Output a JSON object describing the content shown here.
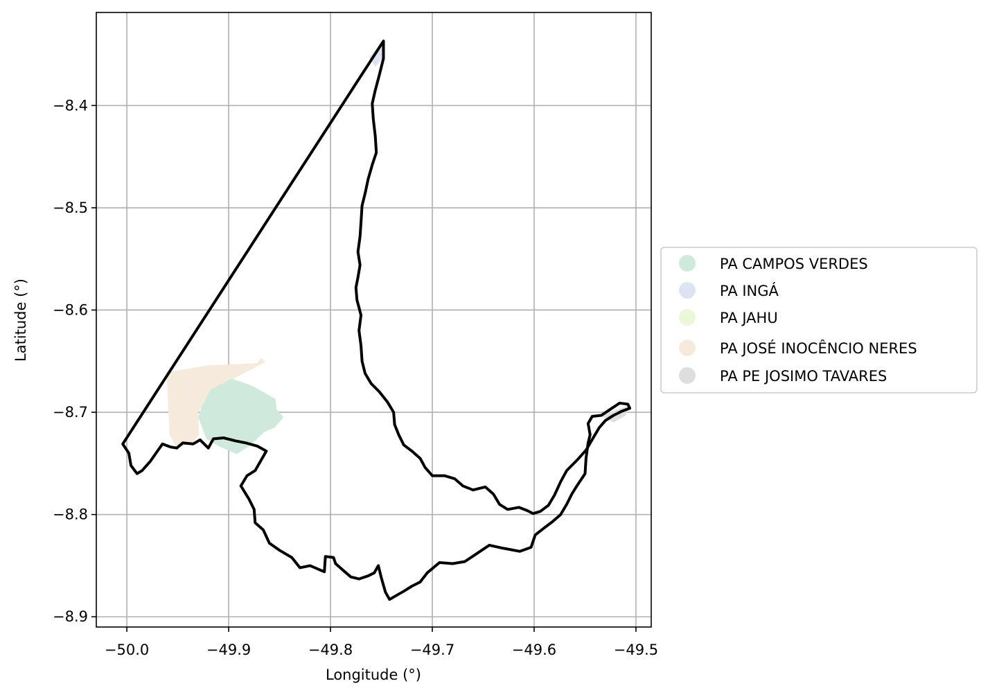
{
  "map": {
    "x_axis_label": "Longitude (°)",
    "y_axis_label": "Latitude (°)",
    "lon_range": [
      -50.03,
      -49.485
    ],
    "lat_range": [
      -8.91,
      -8.309
    ],
    "x_ticks": [
      {
        "value": -50.0,
        "label": "−50.0"
      },
      {
        "value": -49.9,
        "label": "−49.9"
      },
      {
        "value": -49.8,
        "label": "−49.8"
      },
      {
        "value": -49.7,
        "label": "−49.7"
      },
      {
        "value": -49.6,
        "label": "−49.6"
      },
      {
        "value": -49.5,
        "label": "−49.5"
      }
    ],
    "y_ticks": [
      {
        "value": -8.4,
        "label": "−8.4"
      },
      {
        "value": -8.5,
        "label": "−8.5"
      },
      {
        "value": -8.6,
        "label": "−8.6"
      },
      {
        "value": -8.7,
        "label": "−8.7"
      },
      {
        "value": -8.8,
        "label": "−8.8"
      },
      {
        "value": -8.9,
        "label": "−8.9"
      }
    ],
    "grid": true,
    "legend_position": "right, outside plot",
    "legend": [
      {
        "label": "PA CAMPOS VERDES",
        "color": "#cfeadc"
      },
      {
        "label": "PA INGÁ",
        "color": "#dde3f3"
      },
      {
        "label": "PA JAHU",
        "color": "#eaf7d8"
      },
      {
        "label": "PA JOSÉ INOCÊNCIO NERES",
        "color": "#f5eadb"
      },
      {
        "label": "PA PE JOSIMO TAVARES",
        "color": "#dedede"
      }
    ],
    "areas": [
      {
        "name": "PA JOSÉ INOCÊNCIO NERES",
        "color": "#f5eadb",
        "coords": [
          [
            -49.961,
            -8.661
          ],
          [
            -49.92,
            -8.654
          ],
          [
            -49.872,
            -8.652
          ],
          [
            -49.868,
            -8.647
          ],
          [
            -49.864,
            -8.651
          ],
          [
            -49.895,
            -8.667
          ],
          [
            -49.91,
            -8.676
          ],
          [
            -49.93,
            -8.7
          ],
          [
            -49.929,
            -8.722
          ],
          [
            -49.935,
            -8.73
          ],
          [
            -49.951,
            -8.735
          ],
          [
            -49.958,
            -8.722
          ],
          [
            -49.961,
            -8.661
          ]
        ]
      },
      {
        "name": "PA CAMPOS VERDES",
        "color": "#cfeadc",
        "coords": [
          [
            -49.918,
            -8.678
          ],
          [
            -49.897,
            -8.667
          ],
          [
            -49.877,
            -8.674
          ],
          [
            -49.861,
            -8.683
          ],
          [
            -49.854,
            -8.687
          ],
          [
            -49.853,
            -8.697
          ],
          [
            -49.846,
            -8.705
          ],
          [
            -49.855,
            -8.715
          ],
          [
            -49.866,
            -8.72
          ],
          [
            -49.872,
            -8.726
          ],
          [
            -49.88,
            -8.733
          ],
          [
            -49.892,
            -8.741
          ],
          [
            -49.91,
            -8.733
          ],
          [
            -49.922,
            -8.726
          ],
          [
            -49.926,
            -8.715
          ],
          [
            -49.93,
            -8.705
          ],
          [
            -49.926,
            -8.694
          ],
          [
            -49.918,
            -8.678
          ]
        ]
      },
      {
        "name": "PA INGÁ",
        "color": "#dde3f3",
        "coords": [
          [
            -49.749,
            -8.337
          ],
          [
            -49.749,
            -8.354
          ],
          [
            -49.756,
            -8.362
          ],
          [
            -49.762,
            -8.353
          ],
          [
            -49.749,
            -8.337
          ]
        ]
      },
      {
        "name": "PA PE JOSIMO TAVARES",
        "color": "#dedede",
        "coords": [
          [
            -49.506,
            -8.692
          ],
          [
            -49.514,
            -8.696
          ],
          [
            -49.527,
            -8.7
          ],
          [
            -49.534,
            -8.703
          ],
          [
            -49.522,
            -8.71
          ],
          [
            -49.51,
            -8.703
          ],
          [
            -49.506,
            -8.692
          ]
        ]
      }
    ],
    "boundary": [
      [
        -49.748,
        -8.337
      ],
      [
        -49.748,
        -8.354
      ],
      [
        -49.752,
        -8.37
      ],
      [
        -49.756,
        -8.385
      ],
      [
        -49.759,
        -8.398
      ],
      [
        -49.758,
        -8.413
      ],
      [
        -49.756,
        -8.43
      ],
      [
        -49.755,
        -8.446
      ],
      [
        -49.759,
        -8.458
      ],
      [
        -49.763,
        -8.472
      ],
      [
        -49.766,
        -8.486
      ],
      [
        -49.769,
        -8.498
      ],
      [
        -49.77,
        -8.514
      ],
      [
        -49.771,
        -8.528
      ],
      [
        -49.773,
        -8.543
      ],
      [
        -49.771,
        -8.556
      ],
      [
        -49.773,
        -8.568
      ],
      [
        -49.775,
        -8.578
      ],
      [
        -49.774,
        -8.59
      ],
      [
        -49.77,
        -8.605
      ],
      [
        -49.772,
        -8.62
      ],
      [
        -49.77,
        -8.635
      ],
      [
        -49.769,
        -8.65
      ],
      [
        -49.766,
        -8.662
      ],
      [
        -49.76,
        -8.672
      ],
      [
        -49.752,
        -8.68
      ],
      [
        -49.744,
        -8.69
      ],
      [
        -49.738,
        -8.7
      ],
      [
        -49.737,
        -8.712
      ],
      [
        -49.733,
        -8.722
      ],
      [
        -49.728,
        -8.732
      ],
      [
        -49.72,
        -8.738
      ],
      [
        -49.712,
        -8.745
      ],
      [
        -49.707,
        -8.754
      ],
      [
        -49.7,
        -8.762
      ],
      [
        -49.688,
        -8.762
      ],
      [
        -49.678,
        -8.765
      ],
      [
        -49.67,
        -8.772
      ],
      [
        -49.66,
        -8.776
      ],
      [
        -49.648,
        -8.773
      ],
      [
        -49.64,
        -8.78
      ],
      [
        -49.634,
        -8.79
      ],
      [
        -49.626,
        -8.795
      ],
      [
        -49.615,
        -8.793
      ],
      [
        -49.607,
        -8.796
      ],
      [
        -49.601,
        -8.799
      ],
      [
        -49.594,
        -8.797
      ],
      [
        -49.586,
        -8.791
      ],
      [
        -49.58,
        -8.781
      ],
      [
        -49.574,
        -8.768
      ],
      [
        -49.568,
        -8.757
      ],
      [
        -49.558,
        -8.747
      ],
      [
        -49.549,
        -8.737
      ],
      [
        -49.542,
        -8.725
      ],
      [
        -49.536,
        -8.715
      ],
      [
        -49.53,
        -8.708
      ],
      [
        -49.522,
        -8.703
      ],
      [
        -49.514,
        -8.699
      ],
      [
        -49.506,
        -8.696
      ],
      [
        -49.508,
        -8.692
      ],
      [
        -49.516,
        -8.691
      ],
      [
        -49.525,
        -8.697
      ],
      [
        -49.534,
        -8.703
      ],
      [
        -49.543,
        -8.704
      ],
      [
        -49.547,
        -8.711
      ],
      [
        -49.545,
        -8.722
      ],
      [
        -49.547,
        -8.73
      ],
      [
        -49.549,
        -8.745
      ],
      [
        -49.55,
        -8.76
      ],
      [
        -49.558,
        -8.772
      ],
      [
        -49.563,
        -8.78
      ],
      [
        -49.568,
        -8.79
      ],
      [
        -49.574,
        -8.8
      ],
      [
        -49.582,
        -8.807
      ],
      [
        -49.59,
        -8.813
      ],
      [
        -49.599,
        -8.82
      ],
      [
        -49.603,
        -8.832
      ],
      [
        -49.614,
        -8.836
      ],
      [
        -49.63,
        -8.833
      ],
      [
        -49.644,
        -8.83
      ],
      [
        -49.656,
        -8.838
      ],
      [
        -49.668,
        -8.846
      ],
      [
        -49.68,
        -8.848
      ],
      [
        -49.693,
        -8.847
      ],
      [
        -49.705,
        -8.857
      ],
      [
        -49.712,
        -8.866
      ],
      [
        -49.72,
        -8.87
      ],
      [
        -49.728,
        -8.875
      ],
      [
        -49.735,
        -8.879
      ],
      [
        -49.742,
        -8.883
      ],
      [
        -49.746,
        -8.876
      ],
      [
        -49.75,
        -8.862
      ],
      [
        -49.753,
        -8.85
      ],
      [
        -49.757,
        -8.857
      ],
      [
        -49.763,
        -8.86
      ],
      [
        -49.772,
        -8.863
      ],
      [
        -49.78,
        -8.861
      ],
      [
        -49.787,
        -8.855
      ],
      [
        -49.795,
        -8.848
      ],
      [
        -49.797,
        -8.842
      ],
      [
        -49.805,
        -8.841
      ],
      [
        -49.806,
        -8.856
      ],
      [
        -49.82,
        -8.85
      ],
      [
        -49.83,
        -8.852
      ],
      [
        -49.838,
        -8.842
      ],
      [
        -49.85,
        -8.835
      ],
      [
        -49.86,
        -8.828
      ],
      [
        -49.866,
        -8.815
      ],
      [
        -49.874,
        -8.808
      ],
      [
        -49.875,
        -8.795
      ],
      [
        -49.88,
        -8.785
      ],
      [
        -49.888,
        -8.772
      ],
      [
        -49.882,
        -8.762
      ],
      [
        -49.874,
        -8.757
      ],
      [
        -49.87,
        -8.75
      ],
      [
        -49.863,
        -8.738
      ],
      [
        -49.872,
        -8.733
      ],
      [
        -49.883,
        -8.73
      ],
      [
        -49.893,
        -8.728
      ],
      [
        -49.905,
        -8.725
      ],
      [
        -49.915,
        -8.726
      ],
      [
        -49.92,
        -8.735
      ],
      [
        -49.928,
        -8.727
      ],
      [
        -49.935,
        -8.731
      ],
      [
        -49.945,
        -8.73
      ],
      [
        -49.951,
        -8.735
      ],
      [
        -49.957,
        -8.734
      ],
      [
        -49.965,
        -8.731
      ],
      [
        -49.97,
        -8.738
      ],
      [
        -49.977,
        -8.748
      ],
      [
        -49.985,
        -8.757
      ],
      [
        -49.99,
        -8.76
      ],
      [
        -49.996,
        -8.752
      ],
      [
        -49.998,
        -8.74
      ],
      [
        -50.004,
        -8.731
      ],
      [
        -49.748,
        -8.337
      ]
    ]
  }
}
